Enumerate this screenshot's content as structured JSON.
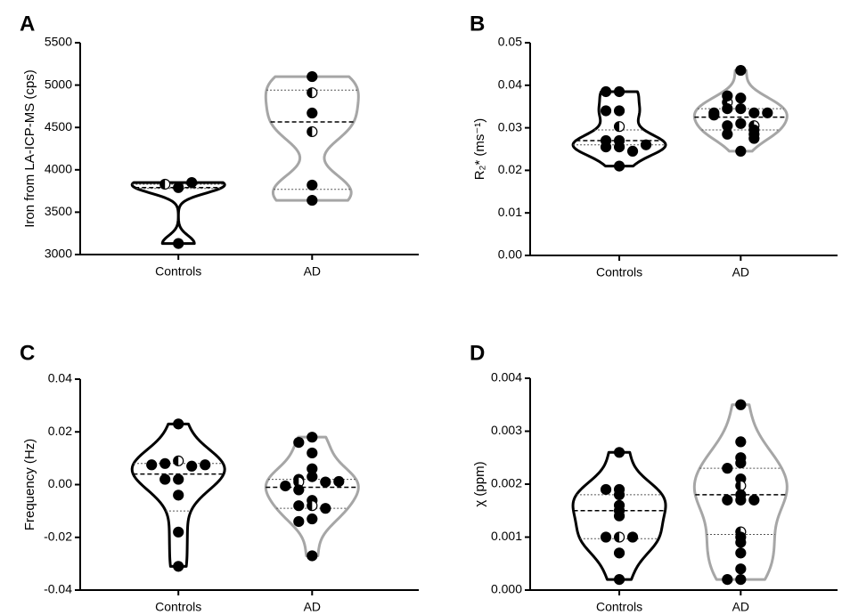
{
  "chart_data": [
    {
      "type": "violin",
      "panel": "A",
      "ylabel": "Iron from LA-ICP-MS (cps)",
      "categories": [
        "Controls",
        "AD"
      ],
      "ylim": [
        3000,
        5500
      ],
      "yticks": [
        3000,
        3500,
        4000,
        4500,
        5000,
        5500
      ],
      "groups": [
        {
          "color": "#000000",
          "values": [
            3790,
            3830,
            3850,
            3130
          ],
          "half_filled": [
            1
          ],
          "median": 3790,
          "q1": 3780,
          "q3": 3830
        },
        {
          "color": "#a6a6a6",
          "values": [
            5100,
            4910,
            4670,
            4450,
            3820,
            3640
          ],
          "half_filled": [
            1,
            3
          ],
          "median": 4565,
          "q1": 3770,
          "q3": 4940
        }
      ]
    },
    {
      "type": "violin",
      "panel": "B",
      "ylabel": "R₂* (ms⁻¹)",
      "categories": [
        "Controls",
        "AD"
      ],
      "ylim": [
        0,
        0.05
      ],
      "yticks": [
        {
          "value": 0,
          "label": "0.00"
        },
        0.01,
        0.02,
        0.03,
        0.04,
        0.05
      ],
      "groups": [
        {
          "color": "#000000",
          "values": [
            0.0385,
            0.0385,
            0.034,
            0.034,
            0.0303,
            0.027,
            0.027,
            0.0255,
            0.0255,
            0.026,
            0.0245,
            0.021
          ],
          "half_filled": [
            4
          ],
          "median": 0.027,
          "q1": 0.026,
          "q3": 0.0295
        },
        {
          "color": "#a6a6a6",
          "values": [
            0.0435,
            0.037,
            0.036,
            0.0345,
            0.0345,
            0.0375,
            0.0335,
            0.0335,
            0.0335,
            0.033,
            0.031,
            0.0305,
            0.0305,
            0.0295,
            0.0285,
            0.0285,
            0.0275,
            0.0245
          ],
          "half_filled": [
            2,
            12
          ],
          "median": 0.0325,
          "q1": 0.0295,
          "q3": 0.0345
        }
      ]
    },
    {
      "type": "violin",
      "panel": "C",
      "ylabel": "Frequency (Hz)",
      "categories": [
        "Controls",
        "AD"
      ],
      "ylim": [
        -0.04,
        0.04
      ],
      "yticks": [
        -0.04,
        -0.02,
        {
          "value": 0,
          "label": "0.00"
        },
        0.02,
        0.04
      ],
      "groups": [
        {
          "color": "#000000",
          "values": [
            0.023,
            0.009,
            0.008,
            0.007,
            0.0075,
            0.0075,
            0.002,
            0.002,
            -0.004,
            -0.018,
            -0.031
          ],
          "half_filled": [
            1
          ],
          "median": 0.004,
          "q1": -0.01,
          "q3": 0.008
        },
        {
          "color": "#a6a6a6",
          "values": [
            0.018,
            0.016,
            0.012,
            0.006,
            0.003,
            0.002,
            0.001,
            0.001,
            0.0012,
            -0.0005,
            -0.002,
            -0.006,
            -0.008,
            -0.008,
            -0.009,
            -0.013,
            -0.014,
            -0.027
          ],
          "half_filled": [
            6,
            12
          ],
          "median": -0.001,
          "q1": -0.009,
          "q3": 0.002
        }
      ]
    },
    {
      "type": "violin",
      "panel": "D",
      "ylabel": "χ (ppm)",
      "categories": [
        "Controls",
        "AD"
      ],
      "ylim": [
        0,
        0.004
      ],
      "yticks": [
        {
          "value": 0,
          "label": "0.000"
        },
        0.001,
        0.002,
        0.003,
        0.004
      ],
      "groups": [
        {
          "color": "#000000",
          "values": [
            0.0026,
            0.0019,
            0.0019,
            0.0018,
            0.0015,
            0.0016,
            0.0014,
            0.001,
            0.001,
            0.001,
            0.0007,
            0.0002
          ],
          "half_filled": [
            7
          ],
          "median": 0.0015,
          "q1": 0.00097,
          "q3": 0.0018
        },
        {
          "color": "#a6a6a6",
          "values": [
            0.0035,
            0.0028,
            0.0025,
            0.0024,
            0.0023,
            0.0021,
            0.00197,
            0.0018,
            0.0017,
            0.0017,
            0.0017,
            0.0011,
            0.001,
            0.0009,
            0.0007,
            0.0004,
            0.0002,
            0.0002
          ],
          "half_filled": [
            6,
            11
          ],
          "median": 0.0018,
          "q1": 0.00105,
          "q3": 0.0023
        }
      ]
    }
  ]
}
